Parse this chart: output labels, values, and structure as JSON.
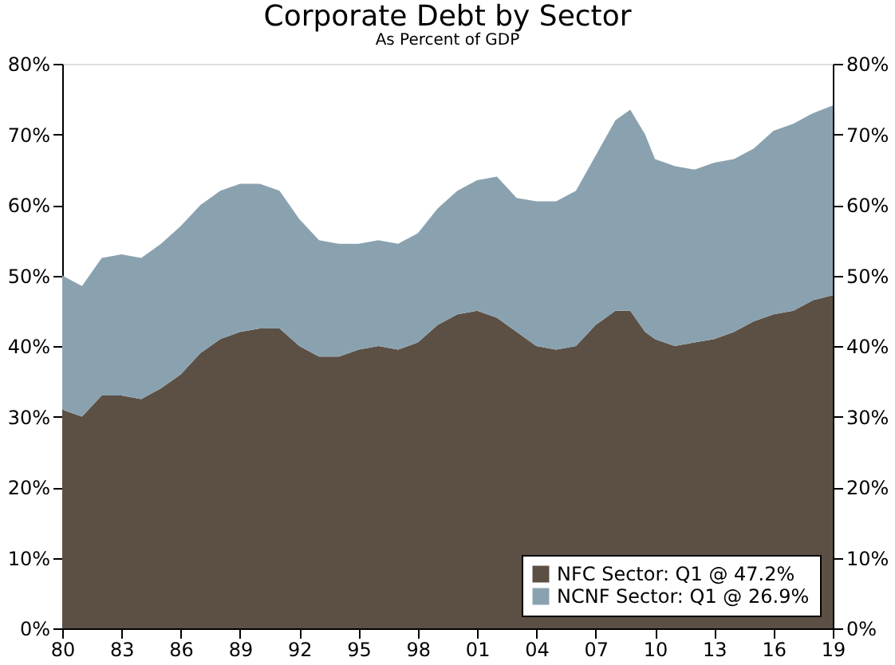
{
  "chart_data": {
    "type": "area",
    "title": "Corporate Debt by Sector",
    "subtitle": "As Percent of GDP",
    "stacked": true,
    "x": [
      1980,
      1981,
      1982,
      1983,
      1984,
      1985,
      1986,
      1987,
      1988,
      1989,
      1990,
      1991,
      1992,
      1993,
      1994,
      1995,
      1996,
      1997,
      1998,
      1999,
      2000,
      2001,
      2002,
      2003,
      2004,
      2005,
      2006,
      2007,
      2008,
      2008.75,
      2009.5,
      2010,
      2011,
      2012,
      2013,
      2014,
      2015,
      2016,
      2017,
      2018,
      2019
    ],
    "series": [
      {
        "name": "NFC Sector: Q1 @ 47.2%",
        "color": "#5c5045",
        "values": [
          31,
          30,
          33,
          33,
          32.5,
          34,
          36,
          39,
          41,
          42,
          42.5,
          42.5,
          40,
          38.5,
          38.5,
          39.5,
          40,
          39.5,
          40.5,
          43,
          44.5,
          45,
          44,
          42,
          40,
          39.5,
          40,
          43,
          45,
          45,
          42,
          41,
          40,
          40.5,
          41,
          42,
          43.5,
          44.5,
          45,
          46.5,
          47.2
        ]
      },
      {
        "name": "NCNF Sector: Q1 @ 26.9%",
        "color": "#8aa2b0",
        "values": [
          19,
          18.5,
          19.5,
          20,
          20,
          20.5,
          21,
          21,
          21,
          21,
          20.5,
          19.5,
          18,
          16.5,
          16,
          15,
          15,
          15,
          15.5,
          16.5,
          17.5,
          18.5,
          20,
          19,
          20.5,
          21,
          22,
          24,
          27,
          28.5,
          28,
          25.5,
          25.5,
          24.5,
          25,
          24.5,
          24.5,
          26,
          26.5,
          26.5,
          26.9
        ]
      }
    ],
    "xlim": [
      1980,
      2019
    ],
    "xticks": [
      {
        "value": 1980,
        "label": "80"
      },
      {
        "value": 1983,
        "label": "83"
      },
      {
        "value": 1986,
        "label": "86"
      },
      {
        "value": 1989,
        "label": "89"
      },
      {
        "value": 1992,
        "label": "92"
      },
      {
        "value": 1995,
        "label": "95"
      },
      {
        "value": 1998,
        "label": "98"
      },
      {
        "value": 2001,
        "label": "01"
      },
      {
        "value": 2004,
        "label": "04"
      },
      {
        "value": 2007,
        "label": "07"
      },
      {
        "value": 2010,
        "label": "10"
      },
      {
        "value": 2013,
        "label": "13"
      },
      {
        "value": 2016,
        "label": "16"
      },
      {
        "value": 2019,
        "label": "19"
      }
    ],
    "ylim": [
      0,
      80
    ],
    "yticks": [
      {
        "value": 0,
        "label": "0%"
      },
      {
        "value": 10,
        "label": "10%"
      },
      {
        "value": 20,
        "label": "20%"
      },
      {
        "value": 30,
        "label": "30%"
      },
      {
        "value": 40,
        "label": "40%"
      },
      {
        "value": 50,
        "label": "50%"
      },
      {
        "value": 60,
        "label": "60%"
      },
      {
        "value": 70,
        "label": "70%"
      },
      {
        "value": 80,
        "label": "80%"
      }
    ],
    "y2lim": [
      0,
      80
    ],
    "y2ticks": [
      {
        "value": 0,
        "label": "0%"
      },
      {
        "value": 10,
        "label": "10%"
      },
      {
        "value": 20,
        "label": "20%"
      },
      {
        "value": 30,
        "label": "30%"
      },
      {
        "value": 40,
        "label": "40%"
      },
      {
        "value": 50,
        "label": "50%"
      },
      {
        "value": 60,
        "label": "60%"
      },
      {
        "value": 70,
        "label": "70%"
      },
      {
        "value": 80,
        "label": "80%"
      }
    ],
    "grid": false,
    "legend": "bottom right"
  }
}
